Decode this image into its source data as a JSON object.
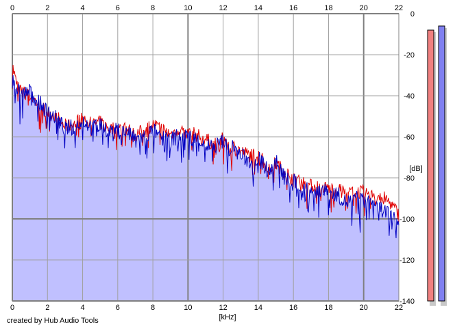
{
  "credit": "created by Hub Audio Tools",
  "chart_data": {
    "type": "area",
    "xlabel": "[kHz]",
    "ylabel": "[dB]",
    "xlim": [
      0,
      22
    ],
    "ylim": [
      -140,
      0
    ],
    "x_ticks": [
      "0",
      "2",
      "4",
      "6",
      "8",
      "10",
      "12",
      "14",
      "16",
      "18",
      "20",
      "22"
    ],
    "y_ticks": [
      "0",
      "-20",
      "-40",
      "-60",
      "-80",
      "-100",
      "-120",
      "-140"
    ],
    "grid": true,
    "colors": {
      "fill": "#c0c0ff",
      "channel_1": "#e00000",
      "channel_2": "#0000c0",
      "grid": "#a0a0a0",
      "major_grid": "#808080"
    },
    "series": [
      {
        "x": [
          0,
          0.2,
          0.5,
          1,
          1.5,
          2,
          2.5,
          3,
          3.5,
          4,
          4.5,
          5,
          5.5,
          6,
          6.5,
          7,
          7.5,
          8,
          8.5,
          9,
          9.5,
          10,
          10.5,
          11,
          11.5,
          12,
          12.5,
          13,
          13.5,
          14,
          14.5,
          15,
          15.5,
          16,
          16.5,
          17,
          17.5,
          18,
          18.5,
          19,
          19.5,
          20,
          20.5,
          21,
          21.5,
          22
        ],
        "values": [
          -25,
          -33,
          -38,
          -40,
          -44,
          -48,
          -50,
          -55,
          -54,
          -51,
          -54,
          -53,
          -56,
          -56,
          -56,
          -59,
          -57,
          -54,
          -56,
          -59,
          -56,
          -58,
          -59,
          -61,
          -64,
          -61,
          -64,
          -67,
          -69,
          -69,
          -74,
          -73,
          -77,
          -80,
          -82,
          -84,
          -84,
          -85,
          -86,
          -87,
          -87,
          -87,
          -89,
          -89,
          -92,
          -98
        ]
      },
      {
        "x": [
          0,
          0.2,
          0.5,
          1,
          1.5,
          2,
          2.5,
          3,
          3.5,
          4,
          4.5,
          5,
          5.5,
          6,
          6.5,
          7,
          7.5,
          8,
          8.5,
          9,
          9.5,
          10,
          10.5,
          11,
          11.5,
          12,
          12.5,
          13,
          13.5,
          14,
          14.5,
          15,
          15.5,
          16,
          16.5,
          17,
          17.5,
          18,
          18.5,
          19,
          19.5,
          20,
          20.5,
          21,
          21.5,
          22
        ],
        "values": [
          -30,
          -36,
          -39,
          -38,
          -43,
          -48,
          -51,
          -56,
          -55,
          -52,
          -55,
          -54,
          -57,
          -57,
          -58,
          -61,
          -60,
          -57,
          -59,
          -62,
          -59,
          -60,
          -61,
          -64,
          -65,
          -62,
          -65,
          -69,
          -72,
          -70,
          -76,
          -72,
          -80,
          -82,
          -84,
          -86,
          -86,
          -87,
          -88,
          -92,
          -90,
          -91,
          -92,
          -95,
          -98,
          -102
        ]
      }
    ],
    "meters": [
      {
        "level": -8
      },
      {
        "level": -6
      }
    ]
  }
}
